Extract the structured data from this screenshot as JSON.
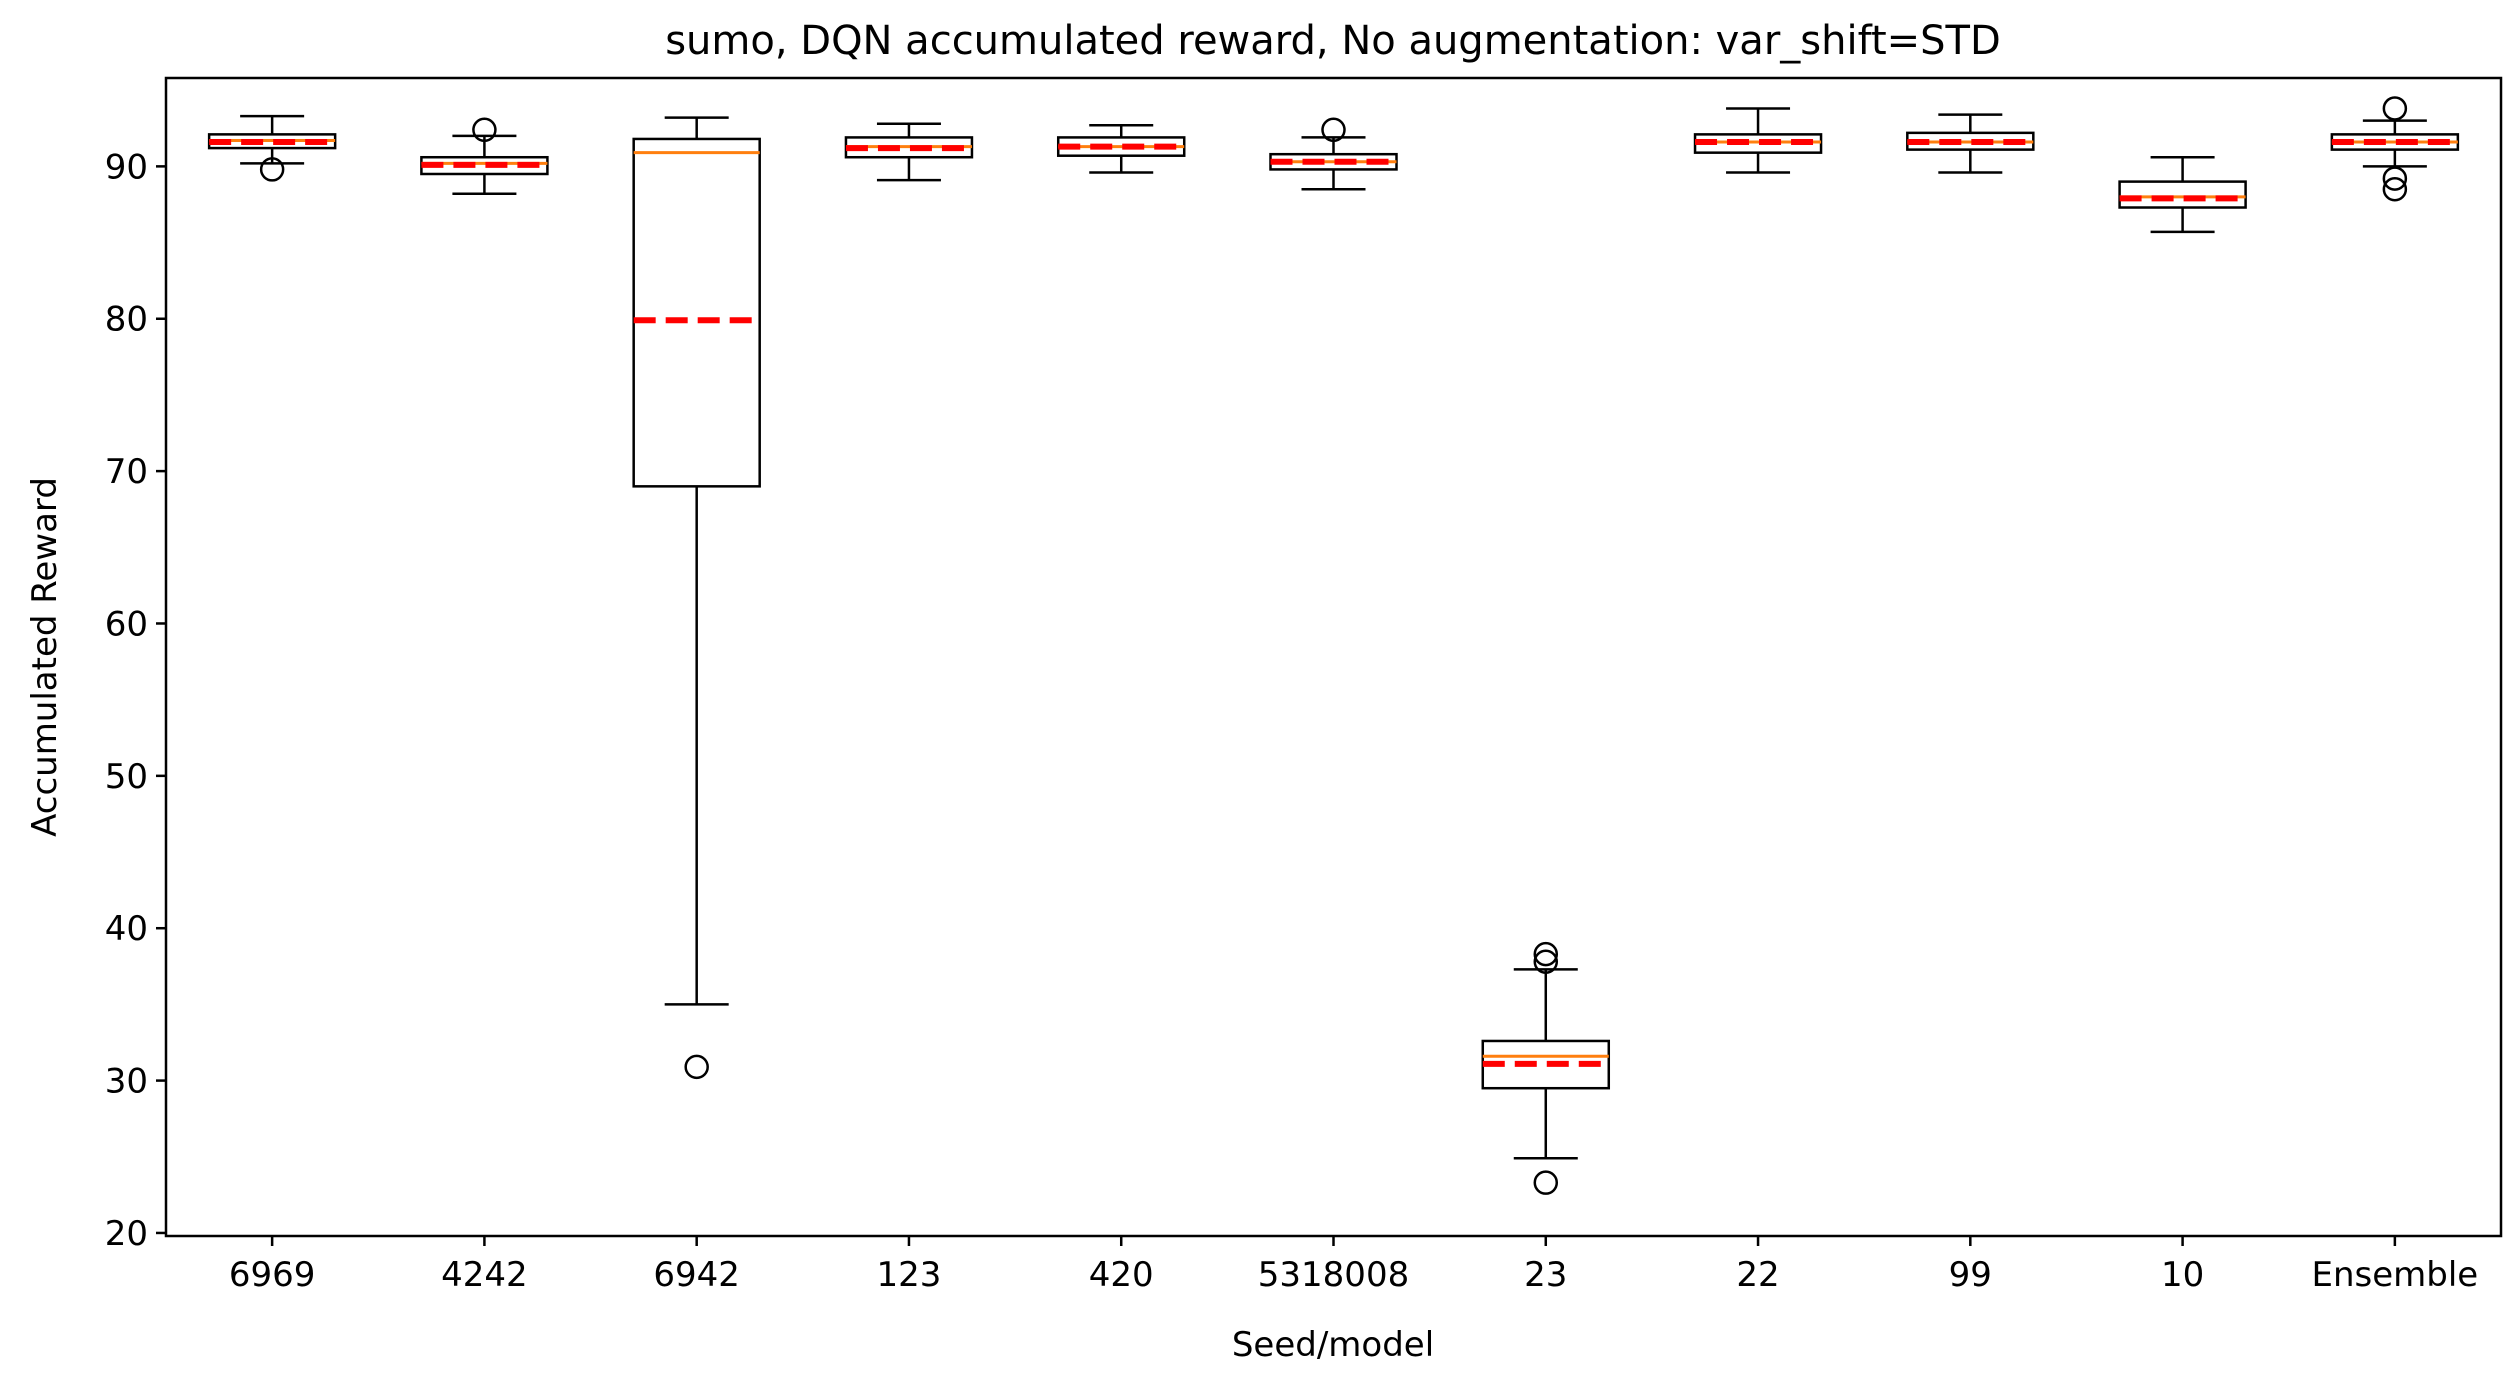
{
  "chart_data": {
    "type": "box",
    "title": "sumo, DQN accumulated reward, No augmentation: var_shift=STD",
    "xlabel": "Seed/model",
    "ylabel": "Accumulated Reward",
    "ylim": [
      19.8,
      95.8
    ],
    "yticks": [
      20,
      30,
      40,
      50,
      60,
      70,
      80,
      90
    ],
    "categories": [
      "6969",
      "4242",
      "6942",
      "123",
      "420",
      "5318008",
      "23",
      "22",
      "99",
      "10",
      "Ensemble"
    ],
    "boxes": [
      {
        "label": "6969",
        "whisker_low": 90.2,
        "q1": 91.2,
        "median": 91.7,
        "q3": 92.1,
        "whisker_high": 93.3,
        "mean": 91.6,
        "outliers": [
          89.8
        ]
      },
      {
        "label": "4242",
        "whisker_low": 88.2,
        "q1": 89.5,
        "median": 90.2,
        "q3": 90.6,
        "whisker_high": 92.0,
        "mean": 90.1,
        "outliers": [
          92.4
        ]
      },
      {
        "label": "6942",
        "whisker_low": 35.0,
        "q1": 69.0,
        "median": 90.9,
        "q3": 91.8,
        "whisker_high": 93.2,
        "mean": 79.9,
        "outliers": [
          30.9
        ]
      },
      {
        "label": "123",
        "whisker_low": 89.1,
        "q1": 90.6,
        "median": 91.3,
        "q3": 91.9,
        "whisker_high": 92.8,
        "mean": 91.2,
        "outliers": []
      },
      {
        "label": "420",
        "whisker_low": 89.6,
        "q1": 90.7,
        "median": 91.3,
        "q3": 91.9,
        "whisker_high": 92.7,
        "mean": 91.3,
        "outliers": []
      },
      {
        "label": "5318008",
        "whisker_low": 88.5,
        "q1": 89.8,
        "median": 90.3,
        "q3": 90.8,
        "whisker_high": 91.9,
        "mean": 90.3,
        "outliers": [
          92.4
        ]
      },
      {
        "label": "23",
        "whisker_low": 24.9,
        "q1": 29.5,
        "median": 31.6,
        "q3": 32.6,
        "whisker_high": 37.3,
        "mean": 31.1,
        "outliers": [
          23.3,
          37.8,
          38.3
        ]
      },
      {
        "label": "22",
        "whisker_low": 89.6,
        "q1": 90.9,
        "median": 91.6,
        "q3": 92.1,
        "whisker_high": 93.8,
        "mean": 91.6,
        "outliers": []
      },
      {
        "label": "99",
        "whisker_low": 89.6,
        "q1": 91.1,
        "median": 91.6,
        "q3": 92.2,
        "whisker_high": 93.4,
        "mean": 91.6,
        "outliers": []
      },
      {
        "label": "10",
        "whisker_low": 85.7,
        "q1": 87.3,
        "median": 88.0,
        "q3": 89.0,
        "whisker_high": 90.6,
        "mean": 87.9,
        "outliers": []
      },
      {
        "label": "Ensemble",
        "whisker_low": 90.0,
        "q1": 91.1,
        "median": 91.6,
        "q3": 92.1,
        "whisker_high": 93.0,
        "mean": 91.6,
        "outliers": [
          88.5,
          89.2,
          93.8
        ]
      }
    ],
    "colors": {
      "box": "#000000",
      "median": "#ff7f0e",
      "mean": "#ff0000",
      "background": "#ffffff"
    },
    "grid": false,
    "legend": "none"
  }
}
